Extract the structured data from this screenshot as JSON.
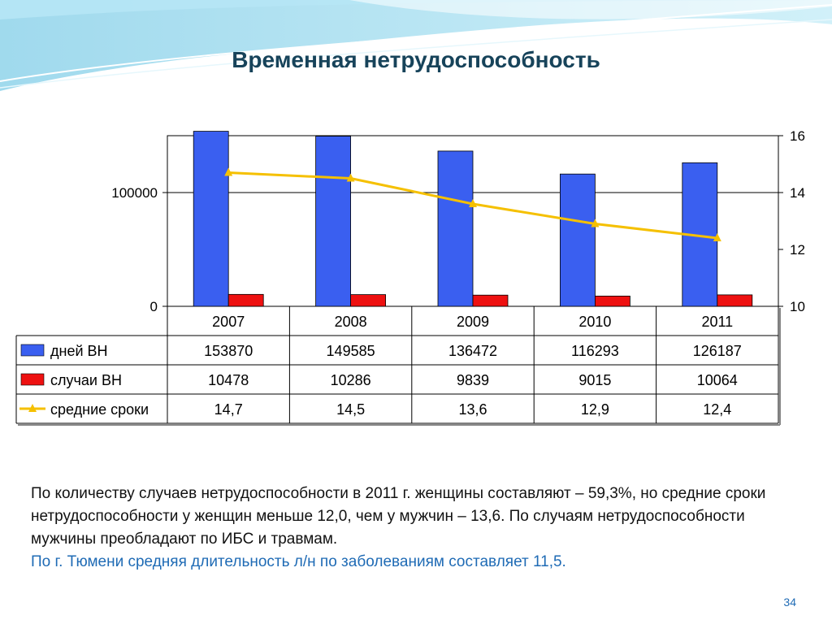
{
  "slide": {
    "title": "Временная нетрудоспособность",
    "paragraph": "По количеству случаев нетрудоспособности в 2011 г. женщины составляют – 59,3%, но средние сроки нетрудоспособности у женщин меньше 12,0, чем у мужчин – 13,6. По случаям нетрудоспособности мужчины преобладают по ИБС и травмам.",
    "highlight": "По г. Тюмени средняя длительность л/н по заболеваниям составляет 11,5.",
    "page_number": "34"
  },
  "chart_data": {
    "type": "bar",
    "categories": [
      "2007",
      "2008",
      "2009",
      "2010",
      "2011"
    ],
    "series": [
      {
        "name": "дней ВН",
        "kind": "bar",
        "axis": "left",
        "color": "#3a5ff0",
        "values": [
          153870,
          149585,
          136472,
          116293,
          126187
        ],
        "labels": [
          "153870",
          "149585",
          "136472",
          "116293",
          "126187"
        ]
      },
      {
        "name": "случаи ВН",
        "kind": "bar",
        "axis": "left",
        "color": "#ee1111",
        "values": [
          10478,
          10286,
          9839,
          9015,
          10064
        ],
        "labels": [
          "10478",
          "10286",
          "9839",
          "9015",
          "10064"
        ]
      },
      {
        "name": "средние сроки",
        "kind": "line",
        "axis": "right",
        "color": "#f5c000",
        "values": [
          14.7,
          14.5,
          13.6,
          12.9,
          12.4
        ],
        "labels": [
          "14,7",
          "14,5",
          "13,6",
          "12,9",
          "12,4"
        ]
      }
    ],
    "y_left": {
      "min": 0,
      "max": 150000,
      "ticks": [
        0,
        100000
      ],
      "tick_labels": [
        "0",
        "100000"
      ]
    },
    "y_right": {
      "min": 10,
      "max": 16,
      "ticks": [
        10,
        12,
        14,
        16
      ],
      "tick_labels": [
        "10",
        "12",
        "14",
        "16"
      ]
    },
    "grid": true,
    "data_table": true
  }
}
